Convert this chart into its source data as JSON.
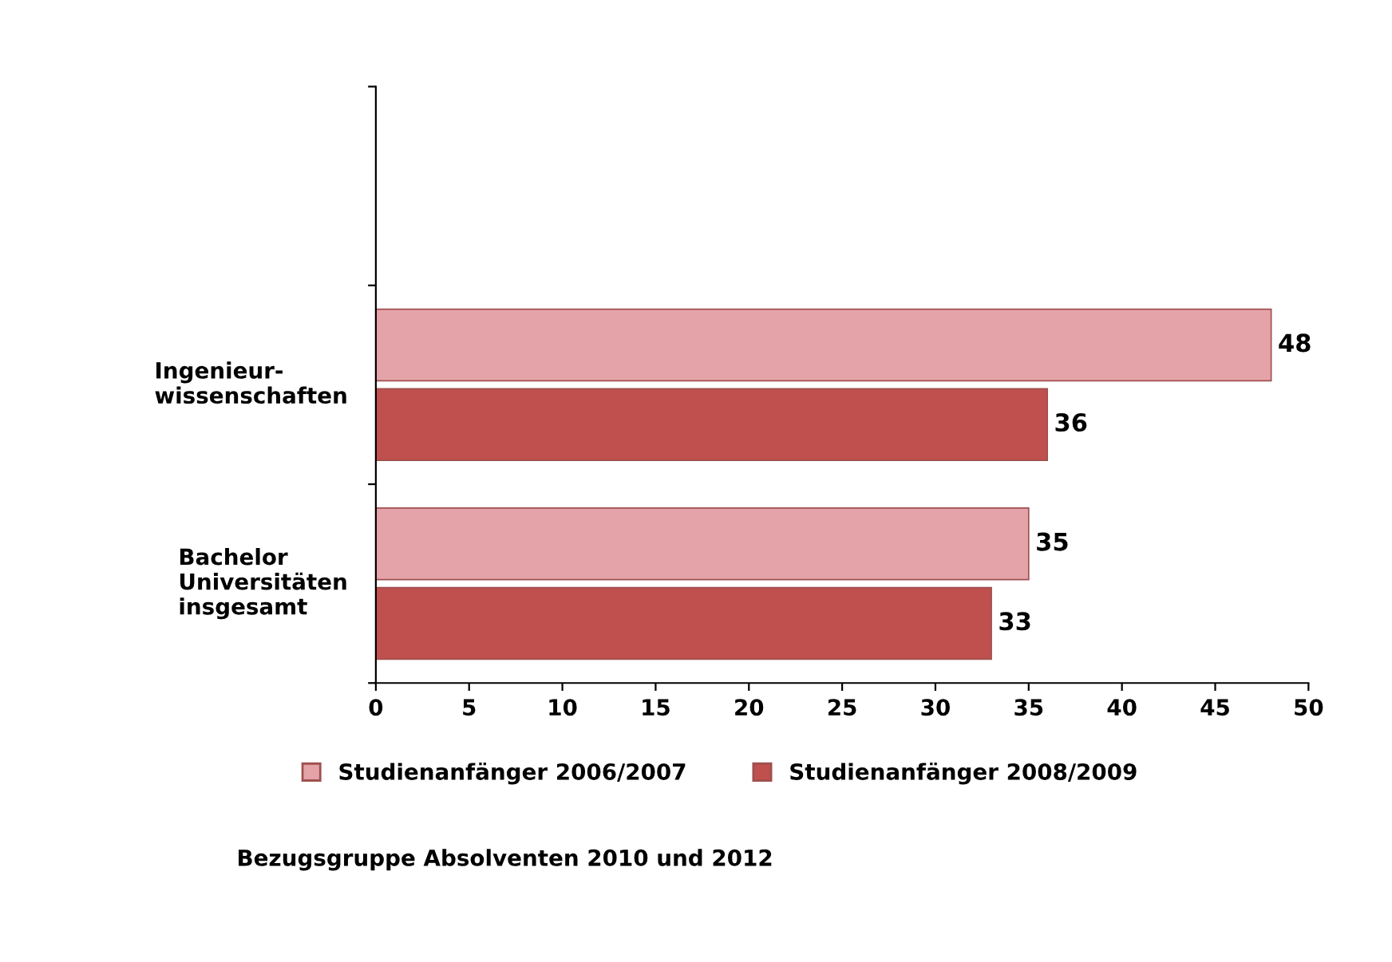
{
  "chart_data": {
    "type": "bar",
    "orientation": "horizontal",
    "categories": [
      null,
      "Ingenieur-\nwissenschaften",
      "Bachelor\nUniversitäten\ninsgesamt"
    ],
    "series": [
      {
        "name": "Studienanfänger 2006/2007",
        "color": "#e4a3a8",
        "values": [
          null,
          48,
          35
        ]
      },
      {
        "name": "Studienanfänger 2008/2009",
        "color": "#c0504d",
        "values": [
          null,
          36,
          33
        ]
      }
    ],
    "xlim": [
      0,
      50
    ],
    "xticks": [
      0,
      5,
      10,
      15,
      20,
      25,
      30,
      35,
      40,
      45,
      50
    ],
    "data_labels": true,
    "grid": false,
    "legend": "bottom",
    "annotations": [
      "Bezugsgruppe Absolventen 2010 und 2012"
    ]
  }
}
